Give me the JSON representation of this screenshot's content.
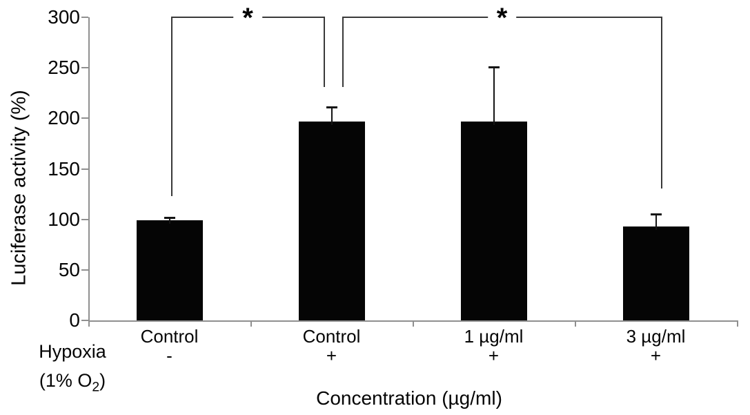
{
  "chart_data": {
    "type": "bar",
    "ylabel": "Luciferase activity (%)",
    "xlabel": "Concentration (µg/ml)",
    "ylim": [
      0,
      300
    ],
    "yticks": [
      0,
      50,
      100,
      150,
      200,
      250,
      300
    ],
    "categories": [
      "Control",
      "Control",
      "1 µg/ml",
      "3 µg/ml"
    ],
    "hypoxia_signs": [
      "-",
      "+",
      "+",
      "+"
    ],
    "values": [
      99,
      197,
      197,
      93
    ],
    "errors_plus": [
      3,
      14,
      54,
      12
    ],
    "bar_color": "#050505",
    "axis_color": "#8f8f8f",
    "row_header": {
      "line1": "Hypoxia",
      "line2_pre": "(1% O",
      "line2_sub": "2",
      "line2_post": ")"
    },
    "significance": [
      {
        "label": "*",
        "from_bar": 0,
        "to_bar": 1,
        "top": 300,
        "left_drop_to": 122,
        "right_drop_to": 230
      },
      {
        "label": "*",
        "from_bar": 1,
        "to_bar": 3,
        "top": 300,
        "left_drop_to": 230,
        "right_drop_to": 130
      }
    ],
    "legend": null,
    "grid": false
  }
}
